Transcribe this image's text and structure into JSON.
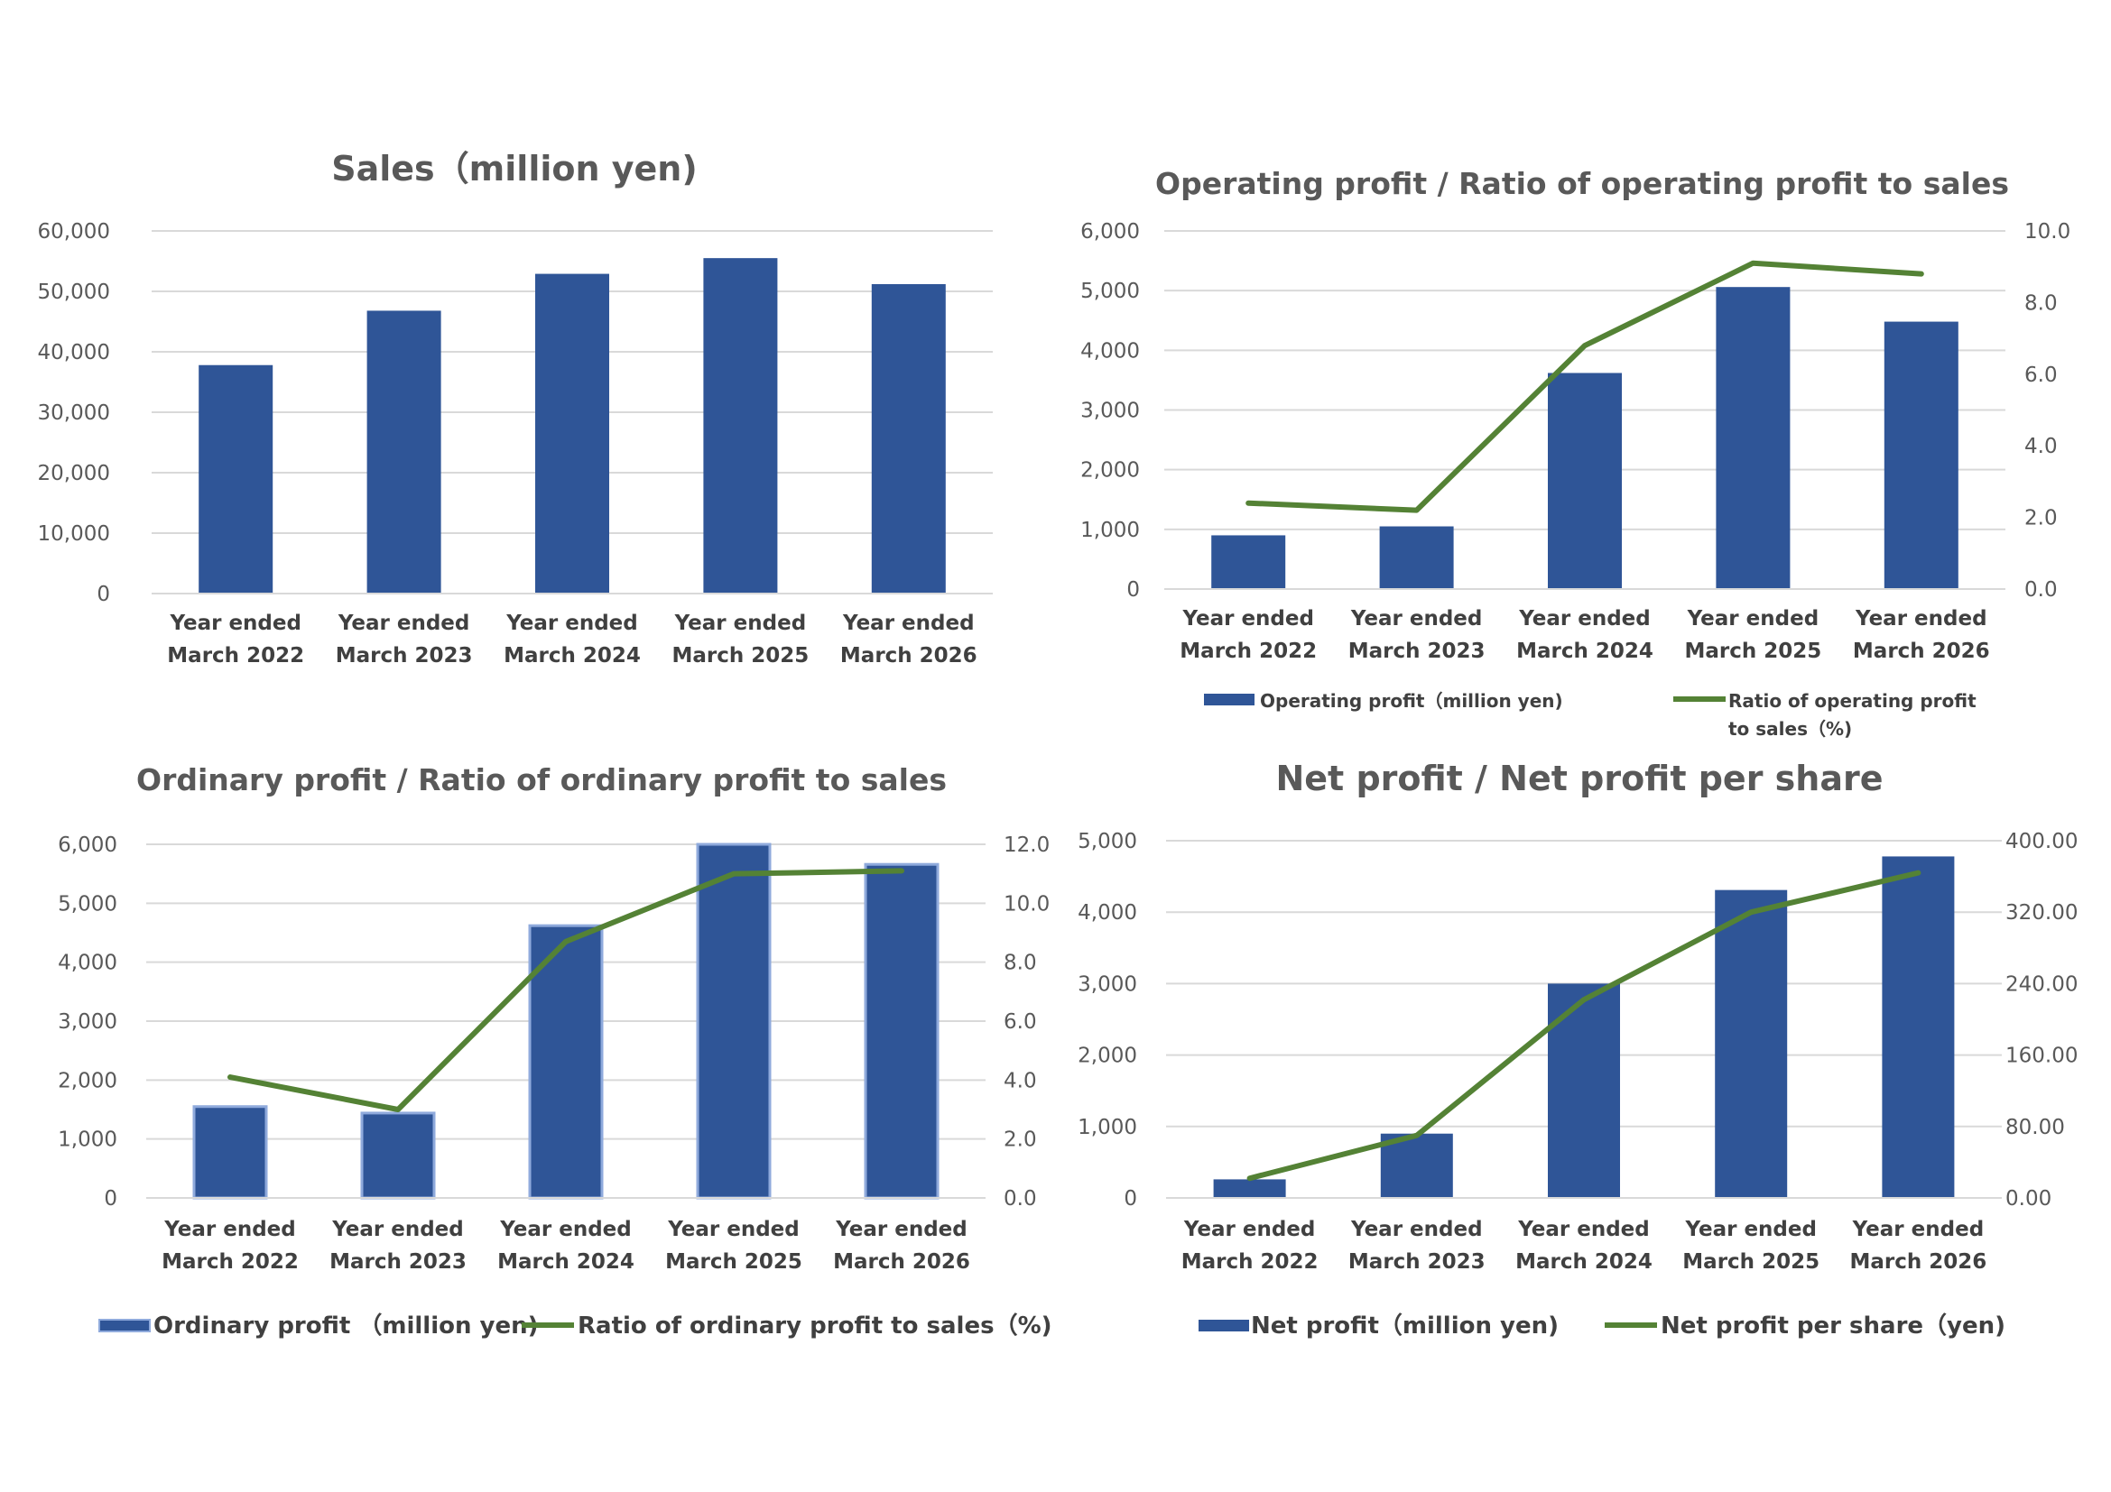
{
  "colors": {
    "bar": "#2f5597",
    "bar_edge": "#8faadc",
    "line": "#548235",
    "grid": "#d9d9d9",
    "text": "#595959"
  },
  "chart_data": [
    {
      "type": "bar",
      "title": "Sales（million yen)",
      "categories": [
        [
          "Year ended",
          "March 2022"
        ],
        [
          "Year ended",
          "March 2023"
        ],
        [
          "Year ended",
          "March 2024"
        ],
        [
          "Year ended",
          "March 2025"
        ],
        [
          "Year ended",
          "March 2026"
        ]
      ],
      "series": [
        {
          "values": [
            37800,
            46800,
            52900,
            55500,
            51200
          ]
        }
      ],
      "ylim": [
        0,
        60000
      ],
      "yticks": [
        "0",
        "10,000",
        "20,000",
        "30,000",
        "40,000",
        "50,000",
        "60,000"
      ],
      "grid": true
    },
    {
      "type": "bar",
      "title": "Operating profit / Ratio of operating profit to sales",
      "categories": [
        [
          "Year ended",
          "March 2022"
        ],
        [
          "Year ended",
          "March 2023"
        ],
        [
          "Year ended",
          "March 2024"
        ],
        [
          "Year ended",
          "March 2025"
        ],
        [
          "Year ended",
          "March 2026"
        ]
      ],
      "series": [
        {
          "name": "Operating profit（million yen)",
          "type": "bar",
          "axis": "left",
          "values": [
            900,
            1050,
            3620,
            5060,
            4480
          ]
        },
        {
          "name_lines": [
            "Ratio of operating profit",
            "to sales（%)"
          ],
          "type": "line",
          "axis": "right",
          "values": [
            2.4,
            2.2,
            6.8,
            9.1,
            8.8
          ]
        }
      ],
      "ylim": [
        0,
        6000
      ],
      "yticks": [
        "0",
        "1,000",
        "2,000",
        "3,000",
        "4,000",
        "5,000",
        "6,000"
      ],
      "y2lim": [
        0,
        10
      ],
      "y2ticks": [
        "0.0",
        "2.0",
        "4.0",
        "6.0",
        "8.0",
        "10.0"
      ],
      "legend": "bottom",
      "grid": true
    },
    {
      "type": "bar",
      "title": "Ordinary profit / Ratio of ordinary profit to sales",
      "categories": [
        [
          "Year ended",
          "March 2022"
        ],
        [
          "Year ended",
          "March 2023"
        ],
        [
          "Year ended",
          "March 2024"
        ],
        [
          "Year ended",
          "March 2025"
        ],
        [
          "Year ended",
          "March 2026"
        ]
      ],
      "series": [
        {
          "name": "Ordinary profit （million yen)",
          "type": "bar",
          "axis": "left",
          "values": [
            1550,
            1440,
            4620,
            6000,
            5660
          ]
        },
        {
          "name": "Ratio of ordinary profit to sales（%)",
          "type": "line",
          "axis": "right",
          "values": [
            4.1,
            3.0,
            8.7,
            11.0,
            11.1
          ]
        }
      ],
      "ylim": [
        0,
        6000
      ],
      "yticks": [
        "0",
        "1,000",
        "2,000",
        "3,000",
        "4,000",
        "5,000",
        "6,000"
      ],
      "y2lim": [
        0,
        12
      ],
      "y2ticks": [
        "0.0",
        "2.0",
        "4.0",
        "6.0",
        "8.0",
        "10.0",
        "12.0"
      ],
      "legend": "bottom",
      "grid": true
    },
    {
      "type": "bar",
      "title": "Net profit / Net profit per share",
      "categories": [
        [
          "Year ended",
          "March 2022"
        ],
        [
          "Year ended",
          "March 2023"
        ],
        [
          "Year ended",
          "March 2024"
        ],
        [
          "Year ended",
          "March 2025"
        ],
        [
          "Year ended",
          "March 2026"
        ]
      ],
      "series": [
        {
          "name": "Net profit（million yen)",
          "type": "bar",
          "axis": "left",
          "values": [
            260,
            900,
            3000,
            4310,
            4780
          ]
        },
        {
          "name": "Net profit per share（yen)",
          "type": "line",
          "axis": "right",
          "values": [
            22,
            70,
            222,
            320,
            364
          ]
        }
      ],
      "ylim": [
        0,
        5000
      ],
      "yticks": [
        "0",
        "1,000",
        "2,000",
        "3,000",
        "4,000",
        "5,000"
      ],
      "y2lim": [
        0,
        400
      ],
      "y2ticks": [
        "0.00",
        "80.00",
        "160.00",
        "240.00",
        "320.00",
        "400.00"
      ],
      "legend": "bottom",
      "grid": true
    }
  ]
}
